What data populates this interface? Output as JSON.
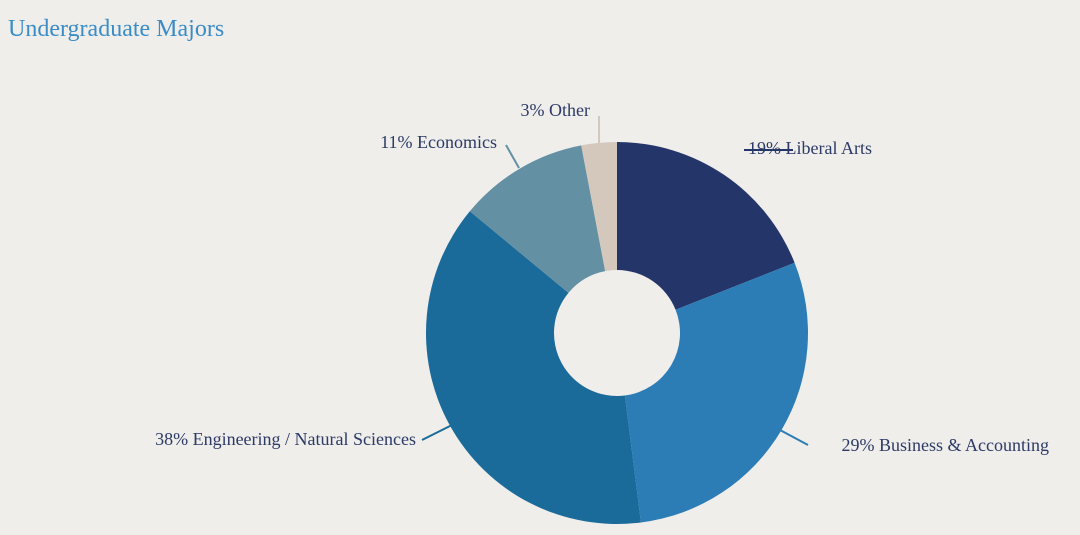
{
  "chart_data": {
    "type": "pie",
    "title": "Undergraduate Majors",
    "donut": true,
    "legend": "none",
    "slices": [
      {
        "label": "19% Liberal Arts",
        "value": 19,
        "color": "#24356a"
      },
      {
        "label": "29% Business & Accounting",
        "value": 29,
        "color": "#2c7db5"
      },
      {
        "label": "38% Engineering / Natural Sciences",
        "value": 38,
        "color": "#1a6a9a"
      },
      {
        "label": "11% Economics",
        "value": 11,
        "color": "#6391a3"
      },
      {
        "label": "3% Other",
        "value": 3,
        "color": "#d4c8bd"
      }
    ]
  }
}
